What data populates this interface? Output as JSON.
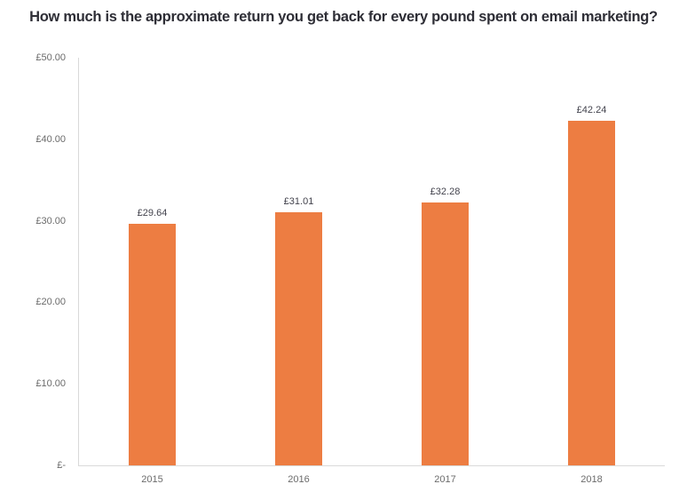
{
  "chart": {
    "title": "How much is the approximate return you get back for every pound spent on email marketing?"
  },
  "chart_data": {
    "type": "bar",
    "title": "How much is the approximate return you get back for every pound spent on email marketing?",
    "categories": [
      "2015",
      "2016",
      "2017",
      "2018"
    ],
    "values": [
      29.64,
      31.01,
      32.28,
      42.24
    ],
    "data_labels": [
      "£29.64",
      "£31.01",
      "£32.28",
      "£42.24"
    ],
    "xlabel": "",
    "ylabel": "",
    "ylim": [
      0,
      50
    ],
    "yticks": [
      {
        "value": 0,
        "label": "£-"
      },
      {
        "value": 10,
        "label": "£10.00"
      },
      {
        "value": 20,
        "label": "£20.00"
      },
      {
        "value": 30,
        "label": "£30.00"
      },
      {
        "value": 40,
        "label": "£40.00"
      },
      {
        "value": 50,
        "label": "£50.00"
      }
    ],
    "grid": false,
    "legend": false,
    "bar_color": "#ED7D42"
  },
  "colors": {
    "bar": "#ED7D42",
    "axis_line": "#D9D9D9",
    "tick_label": "#6B6B6B",
    "data_label": "#44444E",
    "title": "#2E2E36"
  }
}
